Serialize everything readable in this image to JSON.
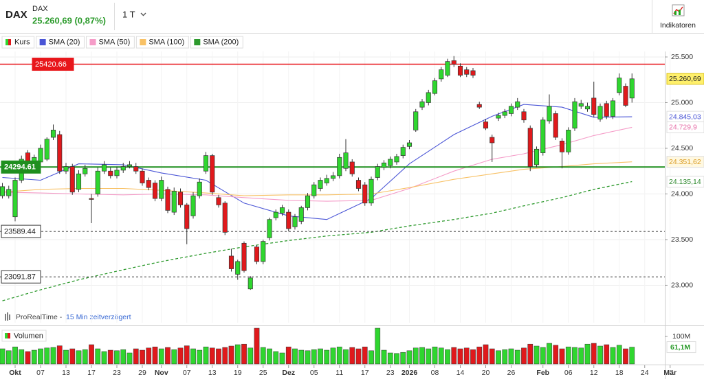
{
  "header": {
    "symbol": "DAX",
    "name": "DAX",
    "quote": "25.260,69 (0,87%)",
    "interval": "1 T",
    "indicators_button": "Indikatoren"
  },
  "footer": {
    "source": "ProRealTime -",
    "delay": "15 Min zeitverzögert"
  },
  "chart_data": {
    "type": "candlestick",
    "categories": [
      null,
      null,
      "Okt",
      null,
      null,
      null,
      "07",
      null,
      null,
      null,
      "13",
      null,
      null,
      null,
      "17",
      null,
      null,
      null,
      "23",
      null,
      null,
      null,
      "29",
      null,
      null,
      "Nov",
      null,
      null,
      null,
      "07",
      null,
      null,
      null,
      "13",
      null,
      null,
      null,
      "19",
      null,
      null,
      null,
      "25",
      null,
      null,
      null,
      "Dez",
      null,
      null,
      null,
      "05",
      null,
      null,
      null,
      "11",
      null,
      null,
      null,
      "17",
      null,
      null,
      null,
      "23",
      null,
      null,
      "2026",
      null,
      null,
      null,
      "08",
      null,
      null,
      null,
      "14",
      null,
      null,
      null,
      "20",
      null,
      null,
      null,
      "26",
      null,
      null,
      null,
      null,
      "Feb",
      null,
      null,
      null,
      "06",
      null,
      null,
      null,
      "12",
      null,
      null,
      null,
      "18",
      null,
      null,
      null,
      "24",
      null,
      null,
      null,
      "Mär"
    ],
    "series": [
      {
        "name": "Kurs",
        "color_up": "#2fd62f",
        "color_down": "#e0191c",
        "open": [
          23980,
          23980,
          23750,
          24150,
          24450,
          24300,
          24350,
          24380,
          24620,
          24650,
          24250,
          24300,
          24050,
          24220,
          23950,
          24000,
          24250,
          24250,
          24200,
          24260,
          24300,
          24300,
          24250,
          24150,
          24120,
          23950,
          24050,
          23800,
          24020,
          23880,
          23760,
          23980,
          24250,
          24420,
          23960,
          23900,
          23320,
          23120,
          23460,
          22960,
          23420,
          23260,
          23520,
          23740,
          23790,
          23800,
          23640,
          23700,
          23850,
          23980,
          24060,
          24120,
          24170,
          24200,
          24280,
          24350,
          24150,
          24100,
          23900,
          24180,
          24290,
          24310,
          24350,
          24420,
          24520,
          24700,
          24950,
          25000,
          25100,
          25260,
          25300,
          25460,
          25400,
          25360,
          25350,
          24980,
          24790,
          24620,
          24830,
          24860,
          24880,
          24950,
          24900,
          24720,
          24320,
          24450,
          24800,
          24880,
          24580,
          24460,
          24720,
          24960,
          24930,
          25050,
          24820,
          24990,
          24850,
          25110,
          25180,
          25050,
          null,
          null,
          null,
          null,
          null,
          null
        ],
        "high": [
          24120,
          24090,
          24180,
          24420,
          24480,
          24430,
          24540,
          24620,
          24760,
          24690,
          24340,
          24330,
          24260,
          24320,
          24000,
          24290,
          24360,
          24290,
          24300,
          24340,
          24360,
          24340,
          24280,
          24180,
          24150,
          24190,
          24080,
          24070,
          24060,
          23900,
          24020,
          24170,
          24460,
          24440,
          23990,
          23920,
          23400,
          23280,
          23480,
          23100,
          23440,
          23500,
          23740,
          23830,
          23880,
          23830,
          23780,
          23870,
          24010,
          24130,
          24180,
          24210,
          24240,
          24440,
          24600,
          24380,
          24180,
          24130,
          24190,
          24330,
          24370,
          24410,
          24440,
          24540,
          24590,
          24930,
          25040,
          25140,
          25270,
          25390,
          25480,
          25510,
          25430,
          25390,
          25380,
          25010,
          24820,
          24650,
          24890,
          24930,
          24990,
          25050,
          24930,
          24750,
          24520,
          24840,
          25090,
          24910,
          24610,
          24730,
          25050,
          25030,
          25000,
          25230,
          24990,
          25020,
          25050,
          25320,
          25210,
          25320,
          null,
          null,
          null,
          null,
          null,
          null
        ],
        "low": [
          23950,
          23950,
          23700,
          24120,
          24280,
          24270,
          24320,
          24360,
          24590,
          24220,
          24220,
          23990,
          24020,
          24190,
          23680,
          23970,
          24220,
          24170,
          24170,
          24230,
          24280,
          24220,
          24090,
          24040,
          23920,
          23920,
          23790,
          23770,
          23850,
          23450,
          23730,
          23950,
          24220,
          23990,
          23850,
          23550,
          23150,
          23060,
          23140,
          22950,
          23230,
          23230,
          23490,
          23710,
          23760,
          23590,
          23610,
          23670,
          23820,
          23950,
          24030,
          24090,
          24140,
          24170,
          24250,
          24190,
          24030,
          23870,
          23870,
          24150,
          24260,
          24280,
          24320,
          24390,
          24490,
          24680,
          24920,
          24970,
          25080,
          25230,
          25280,
          25390,
          25280,
          25280,
          25270,
          24930,
          24700,
          24350,
          24800,
          24830,
          24850,
          24920,
          24780,
          24250,
          24290,
          24420,
          24770,
          24590,
          24280,
          24430,
          24690,
          24930,
          24900,
          24840,
          24790,
          24820,
          24820,
          25080,
          24950,
          25000,
          null,
          null,
          null,
          null,
          null,
          null
        ],
        "close": [
          24080,
          24050,
          24150,
          24380,
          24300,
          24400,
          24500,
          24600,
          24700,
          24250,
          24300,
          24020,
          24220,
          24280,
          23940,
          24250,
          24320,
          24200,
          24260,
          24300,
          24320,
          24250,
          24120,
          24070,
          23950,
          24150,
          23820,
          24030,
          23880,
          23620,
          23980,
          24130,
          24420,
          24020,
          23880,
          23580,
          23180,
          23260,
          23160,
          23080,
          23260,
          23480,
          23720,
          23800,
          23850,
          23620,
          23750,
          23850,
          23980,
          24100,
          24150,
          24170,
          24200,
          24400,
          24450,
          24220,
          24060,
          23900,
          24160,
          24300,
          24340,
          24380,
          24410,
          24510,
          24560,
          24900,
          25010,
          25110,
          25240,
          25360,
          25450,
          25420,
          25300,
          25310,
          25300,
          24950,
          24720,
          24560,
          24860,
          24900,
          24960,
          25010,
          24810,
          24300,
          24490,
          24810,
          24960,
          24620,
          24460,
          24700,
          25010,
          24990,
          24960,
          24870,
          24960,
          24850,
          25020,
          25270,
          24970,
          25260.69,
          null,
          null,
          null,
          null,
          null,
          null
        ]
      }
    ],
    "sma": [
      {
        "name": "SMA (20)",
        "color": "#4a55d6",
        "x": [
          0,
          6,
          12,
          19,
          25,
          32,
          38,
          45,
          51,
          58,
          64,
          71,
          77,
          82,
          88,
          93,
          99
        ],
        "values": [
          24180,
          24150,
          24330,
          24320,
          24230,
          24150,
          23900,
          23760,
          23720,
          23950,
          24330,
          24650,
          24850,
          24980,
          24950,
          24840,
          24845.03
        ]
      },
      {
        "name": "SMA (50)",
        "color": "#f59cc8",
        "x": [
          0,
          6,
          12,
          19,
          25,
          32,
          38,
          45,
          51,
          58,
          64,
          71,
          77,
          82,
          88,
          93,
          99
        ],
        "values": [
          24020,
          24010,
          24000,
          23990,
          24000,
          23990,
          23960,
          23930,
          23920,
          23930,
          24060,
          24250,
          24380,
          24440,
          24540,
          24640,
          24729.9
        ]
      },
      {
        "name": "SMA (100)",
        "color": "#f8c165",
        "x": [
          0,
          6,
          12,
          19,
          25,
          32,
          38,
          45,
          51,
          58,
          64,
          71,
          77,
          82,
          88,
          93,
          99
        ],
        "values": [
          24020,
          24050,
          24060,
          24060,
          24040,
          24010,
          23980,
          23990,
          23990,
          24000,
          24070,
          24160,
          24220,
          24270,
          24300,
          24330,
          24351.62
        ]
      },
      {
        "name": "SMA (200)",
        "color": "#2e9a2e",
        "dashed": true,
        "x": [
          0,
          6,
          12,
          19,
          25,
          32,
          38,
          45,
          51,
          58,
          64,
          71,
          77,
          82,
          88,
          93,
          99
        ],
        "values": [
          22830,
          22950,
          23060,
          23170,
          23260,
          23350,
          23420,
          23490,
          23540,
          23580,
          23650,
          23720,
          23790,
          23870,
          23960,
          24050,
          24135.14
        ]
      }
    ],
    "ylim": [
      22590,
      25560
    ],
    "yticks": [
      {
        "value": 23000,
        "label": "23.000"
      },
      {
        "value": 23500,
        "label": "23.500"
      },
      {
        "value": 24000,
        "label": "24.000"
      },
      {
        "value": 24500,
        "label": "24.500"
      },
      {
        "value": 25000,
        "label": "25.000"
      },
      {
        "value": 25500,
        "label": "25.500"
      }
    ],
    "grid": true,
    "levels": [
      {
        "value": 25420.66,
        "color": "#e8161b"
      },
      {
        "value": 24294.61,
        "color": "#1f8f1f"
      },
      {
        "value": 23589.44,
        "color": "#333333",
        "dashed": true
      },
      {
        "value": 23091.87,
        "color": "#333333",
        "dashed": true
      }
    ],
    "badges": [
      {
        "value": 25260.69,
        "label": "25.260,69",
        "color": "#222222",
        "background": "#fff06b"
      },
      {
        "value": 24845.03,
        "label": "24.845,03",
        "color": "#4a55d6",
        "background": "#ffffff"
      },
      {
        "value": 24729.9,
        "label": "24.729,9",
        "color": "#e66fa8",
        "background": "#ffffff"
      },
      {
        "value": 24351.62,
        "label": "24.351,62",
        "color": "#d99a20",
        "background": "#fff8e0"
      },
      {
        "value": 24135.14,
        "label": "24.135,14",
        "color": "#2e8a2e",
        "background": "#ffffff"
      }
    ],
    "volume": {
      "title": "Volumen",
      "values": [
        55,
        48,
        62,
        52,
        45,
        50,
        55,
        58,
        60,
        66,
        50,
        55,
        48,
        52,
        70,
        55,
        45,
        50,
        48,
        52,
        40,
        55,
        50,
        58,
        62,
        55,
        60,
        52,
        58,
        66,
        55,
        50,
        62,
        58,
        55,
        60,
        65,
        70,
        72,
        58,
        130,
        60,
        55,
        45,
        40,
        62,
        55,
        50,
        48,
        52,
        55,
        50,
        58,
        62,
        52,
        60,
        55,
        62,
        48,
        130,
        50,
        40,
        38,
        42,
        48,
        58,
        60,
        55,
        62,
        58,
        52,
        60,
        55,
        58,
        52,
        62,
        70,
        55,
        48,
        52,
        55,
        50,
        58,
        72,
        65,
        60,
        75,
        68,
        55,
        62,
        60,
        58,
        72,
        75,
        65,
        70,
        60,
        68,
        55,
        61.1,
        null,
        null,
        null,
        null,
        null,
        null
      ],
      "ylim": [
        0,
        130
      ],
      "yticks": [
        {
          "value": 100,
          "label": "100M"
        }
      ],
      "badge": {
        "value": 61.1,
        "label": "61,1M"
      }
    }
  }
}
